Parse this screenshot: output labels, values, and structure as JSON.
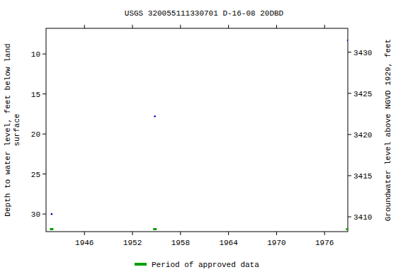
{
  "chart_data": {
    "type": "scatter",
    "title": "USGS 320055111330701 D-16-08 20DBD",
    "ylabel": [
      "Depth to water level, feet below land",
      "surface"
    ],
    "y2label": "Groundwater level above NGVD 1929, feet",
    "xlim": [
      1941.2,
      1978.9
    ],
    "xticks": [
      1946,
      1952,
      1958,
      1964,
      1970,
      1976
    ],
    "ylim": [
      32.2,
      6.8
    ],
    "yticks": [
      10,
      15,
      20,
      25,
      30
    ],
    "y2lim": [
      3408.2,
      3432.9
    ],
    "y2ticks": [
      3410,
      3415,
      3420,
      3425,
      3430
    ],
    "series": [
      {
        "color": "#0000cc",
        "marker": "point",
        "x": [
          1941.9,
          1954.8,
          1978.9
        ],
        "values": [
          30.0,
          17.8,
          8.3
        ]
      }
    ],
    "approved_periods": {
      "name": "Period of approved data",
      "color": "#00a000",
      "x": [
        1941.9,
        1954.8,
        1978.9
      ]
    },
    "legend": "bottom",
    "grid": false
  }
}
